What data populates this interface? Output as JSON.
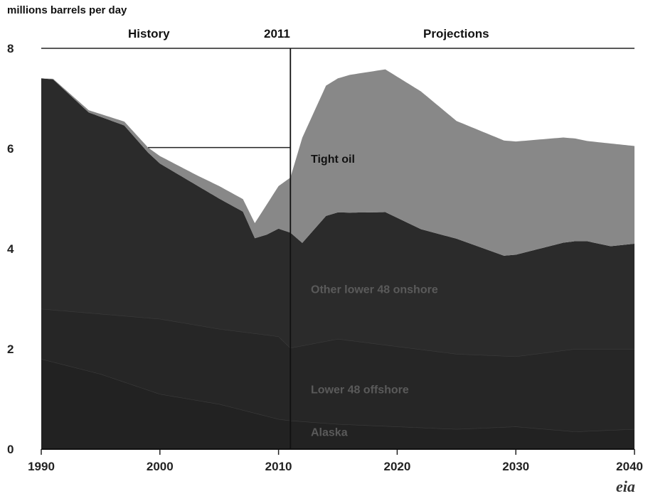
{
  "chart_data": {
    "type": "area",
    "stacked": true,
    "title": "",
    "ylabel": "millions barrels per day",
    "xlabel": "",
    "xlim": [
      1990,
      2040
    ],
    "ylim": [
      0,
      8
    ],
    "x_ticks": [
      "1990",
      "2000",
      "2010",
      "2020",
      "2030",
      "2040"
    ],
    "y_ticks": [
      "0",
      "2",
      "4",
      "6",
      "8"
    ],
    "grid": false,
    "divider": {
      "year": 2011,
      "label": "2011",
      "left_label": "History",
      "right_label": "Projections"
    },
    "series": [
      {
        "name": "Alaska",
        "color": "#222222",
        "x": [
          1990,
          1995,
          2000,
          2005,
          2010,
          2011,
          2015,
          2020,
          2025,
          2030,
          2035,
          2040
        ],
        "values": [
          1.8,
          1.5,
          1.1,
          0.9,
          0.6,
          0.57,
          0.5,
          0.45,
          0.4,
          0.45,
          0.35,
          0.4
        ]
      },
      {
        "name": "Lower 48 offshore",
        "color": "#262626",
        "x": [
          1990,
          1995,
          2000,
          2005,
          2010,
          2011,
          2015,
          2020,
          2025,
          2030,
          2035,
          2040
        ],
        "values": [
          1.0,
          1.2,
          1.5,
          1.5,
          1.65,
          1.45,
          1.7,
          1.6,
          1.5,
          1.4,
          1.65,
          1.6
        ]
      },
      {
        "name": "Other lower 48 onshore",
        "color": "#2b2b2b",
        "x": [
          1990,
          1991,
          1994,
          1997,
          1999,
          2000,
          2003,
          2005,
          2007,
          2008,
          2009,
          2011,
          2012,
          2014,
          2016,
          2019,
          2022,
          2025,
          2029,
          2034,
          2036,
          2038,
          2040
        ],
        "values": [
          4.6,
          4.6,
          4.0,
          3.8,
          3.3,
          3.1,
          2.8,
          2.6,
          2.4,
          1.9,
          2.0,
          2.3,
          2.05,
          2.5,
          2.55,
          2.65,
          2.4,
          2.3,
          2.0,
          2.15,
          2.15,
          2.05,
          2.1
        ]
      },
      {
        "name": "Tight oil",
        "color": "#888888",
        "x": [
          1990,
          1999,
          2000,
          2003,
          2005,
          2007,
          2008,
          2009,
          2011,
          2012,
          2014,
          2016,
          2019,
          2022,
          2025,
          2029,
          2034,
          2036,
          2038,
          2040
        ],
        "values": [
          0.0,
          0.1,
          0.15,
          0.2,
          0.25,
          0.25,
          0.3,
          0.6,
          1.1,
          2.1,
          2.6,
          2.75,
          2.85,
          2.75,
          2.35,
          2.3,
          2.1,
          2.0,
          2.05,
          1.95
        ]
      }
    ]
  }
}
